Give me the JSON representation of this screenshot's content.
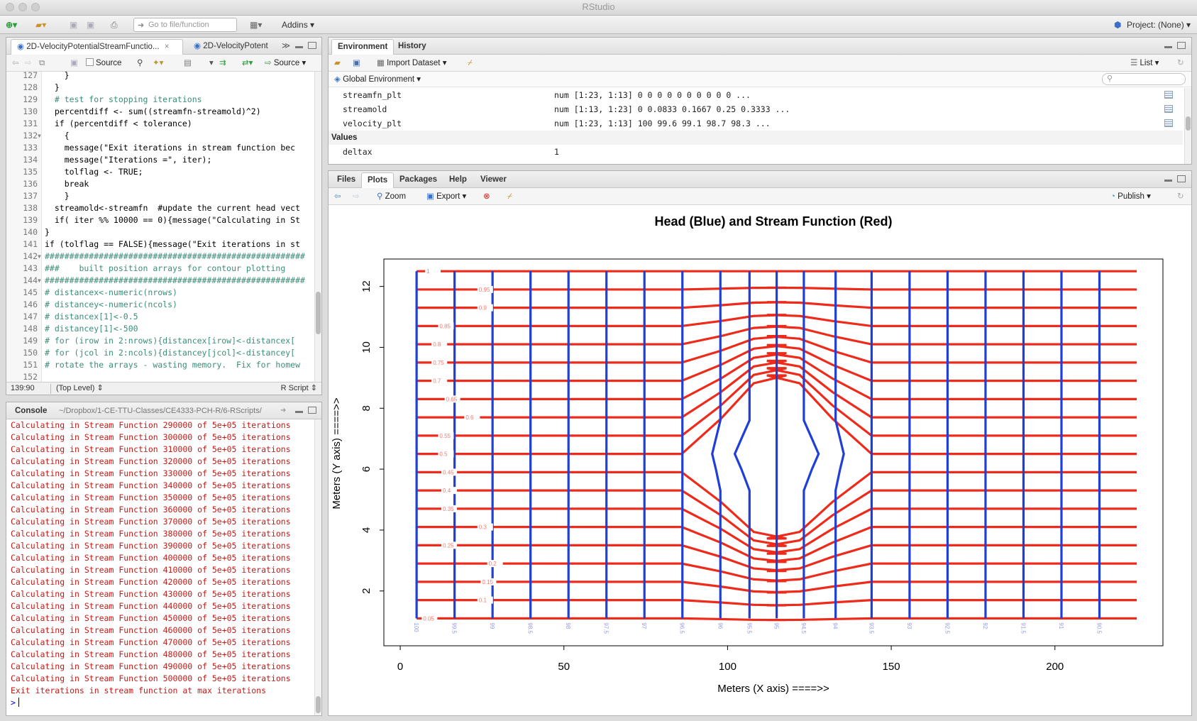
{
  "window": {
    "title": "RStudio"
  },
  "toolbar": {
    "goto_placeholder": "Go to file/function",
    "addins_label": "Addins",
    "project_label": "Project: (None)"
  },
  "editor": {
    "tabs": [
      {
        "label": "2D-VelocityPotentialStreamFunctio..."
      },
      {
        "label": "2D-VelocityPotent"
      }
    ],
    "source_checkbox_label": "Source",
    "source_button_label": "Source",
    "lines": [
      {
        "n": "127",
        "fold": "",
        "code": "    }"
      },
      {
        "n": "128",
        "fold": "",
        "code": "  }"
      },
      {
        "n": "129",
        "fold": "",
        "code": "  # test for stopping iterations"
      },
      {
        "n": "130",
        "fold": "",
        "code": "  percentdiff <- sum((streamfn-streamold)^2)"
      },
      {
        "n": "131",
        "fold": "",
        "code": "  if (percentdiff < tolerance)"
      },
      {
        "n": "132",
        "fold": "▼",
        "code": "    {"
      },
      {
        "n": "133",
        "fold": "",
        "code": "    message(\"Exit iterations in stream function bec"
      },
      {
        "n": "134",
        "fold": "",
        "code": "    message(\"Iterations =\", iter);"
      },
      {
        "n": "135",
        "fold": "",
        "code": "    tolflag <- TRUE;"
      },
      {
        "n": "136",
        "fold": "",
        "code": "    break"
      },
      {
        "n": "137",
        "fold": "",
        "code": "    }"
      },
      {
        "n": "138",
        "fold": "",
        "code": "  streamold<-streamfn  #update the current head vect"
      },
      {
        "n": "139",
        "fold": "",
        "code": "  if( iter %% 10000 == 0){message(\"Calculating in St"
      },
      {
        "n": "140",
        "fold": "",
        "code": "}"
      },
      {
        "n": "141",
        "fold": "",
        "code": "if (tolflag == FALSE){message(\"Exit iterations in st"
      },
      {
        "n": "142",
        "fold": "▼",
        "code": "#####################################################"
      },
      {
        "n": "143",
        "fold": "",
        "code": "###    built position arrays for contour plotting"
      },
      {
        "n": "144",
        "fold": "▼",
        "code": "#####################################################"
      },
      {
        "n": "145",
        "fold": "",
        "code": "# distancex<-numeric(nrows)"
      },
      {
        "n": "146",
        "fold": "",
        "code": "# distancey<-numeric(ncols)"
      },
      {
        "n": "147",
        "fold": "",
        "code": "# distancex[1]<-0.5"
      },
      {
        "n": "148",
        "fold": "",
        "code": "# distancey[1]<-500"
      },
      {
        "n": "149",
        "fold": "",
        "code": "# for (irow in 2:nrows){distancex[irow]<-distancex["
      },
      {
        "n": "150",
        "fold": "",
        "code": "# for (jcol in 2:ncols){distancey[jcol]<-distancey["
      },
      {
        "n": "151",
        "fold": "",
        "code": "# rotate the arrays - wasting memory.  Fix for homew"
      },
      {
        "n": "152",
        "fold": "",
        "code": ""
      }
    ],
    "status": {
      "position": "139:90",
      "scope": "(Top Level)",
      "filetype": "R Script"
    }
  },
  "console": {
    "title": "Console",
    "path": "~/Dropbox/1-CE-TTU-Classes/CE4333-PCH-R/6-RScripts/",
    "lines": [
      "Calculating in Stream Function 290000 of 5e+05 iterations",
      "Calculating in Stream Function 300000 of 5e+05 iterations",
      "Calculating in Stream Function 310000 of 5e+05 iterations",
      "Calculating in Stream Function 320000 of 5e+05 iterations",
      "Calculating in Stream Function 330000 of 5e+05 iterations",
      "Calculating in Stream Function 340000 of 5e+05 iterations",
      "Calculating in Stream Function 350000 of 5e+05 iterations",
      "Calculating in Stream Function 360000 of 5e+05 iterations",
      "Calculating in Stream Function 370000 of 5e+05 iterations",
      "Calculating in Stream Function 380000 of 5e+05 iterations",
      "Calculating in Stream Function 390000 of 5e+05 iterations",
      "Calculating in Stream Function 400000 of 5e+05 iterations",
      "Calculating in Stream Function 410000 of 5e+05 iterations",
      "Calculating in Stream Function 420000 of 5e+05 iterations",
      "Calculating in Stream Function 430000 of 5e+05 iterations",
      "Calculating in Stream Function 440000 of 5e+05 iterations",
      "Calculating in Stream Function 450000 of 5e+05 iterations",
      "Calculating in Stream Function 460000 of 5e+05 iterations",
      "Calculating in Stream Function 470000 of 5e+05 iterations",
      "Calculating in Stream Function 480000 of 5e+05 iterations",
      "Calculating in Stream Function 490000 of 5e+05 iterations",
      "Calculating in Stream Function 500000 of 5e+05 iterations",
      "Exit iterations in stream function at max iterations"
    ],
    "prompt": ">"
  },
  "environment": {
    "tabs": [
      "Environment",
      "History"
    ],
    "import_label": "Import Dataset",
    "list_label": "List",
    "scope_label": "Global Environment",
    "rows": [
      {
        "name": "streamfn_plt",
        "value": "num [1:23, 1:13] 0 0 0 0 0 0 0 0 0 0 ..."
      },
      {
        "name": "streamold",
        "value": "num [1:13, 1:23] 0 0.0833 0.1667 0.25 0.3333 ..."
      },
      {
        "name": "velocity_plt",
        "value": "num [1:23, 1:13] 100 99.6 99.1 98.7 98.3 ..."
      }
    ],
    "values_header": "Values",
    "value_rows": [
      {
        "name": "deltax",
        "value": "1"
      }
    ]
  },
  "plots_pane": {
    "tabs": [
      "Files",
      "Plots",
      "Packages",
      "Help",
      "Viewer"
    ],
    "zoom_label": "Zoom",
    "export_label": "Export",
    "publish_label": "Publish"
  },
  "chart_data": {
    "type": "contour",
    "title": "Head (Blue) and Stream Function (Red)",
    "xlabel": "Meters (X axis) ====>>",
    "ylabel": "Meters (Y axis) ====>>",
    "xlim": [
      -5,
      233
    ],
    "ylim": [
      0.2,
      12.9
    ],
    "x_ticks": [
      0,
      50,
      100,
      150,
      200
    ],
    "y_ticks": [
      2,
      4,
      6,
      8,
      10,
      12
    ],
    "head_series": {
      "name": "Head (Blue)",
      "color": "#1f3fd6",
      "x": [
        5,
        16.6,
        28.2,
        39.8,
        51.4,
        63,
        74.6,
        86.2,
        97.8,
        106.7,
        115,
        123.3,
        133,
        144,
        155.6,
        167.2,
        178.8,
        190.4,
        202,
        213.6
      ],
      "labels": [
        "100",
        "99.5",
        "99",
        "98.5",
        "98",
        "97.5",
        "97",
        "96.5",
        "96",
        "95.5",
        "95",
        "94.5",
        "94",
        "93.5",
        "93",
        "92.5",
        "92",
        "91.5",
        "91",
        "90.5"
      ]
    },
    "stream_series": {
      "name": "Stream Function (Red)",
      "color": "#ee2b1b",
      "x_range": [
        5,
        225
      ],
      "y": [
        1.1,
        1.7,
        2.3,
        2.9,
        3.5,
        4.1,
        4.7,
        5.3,
        5.9,
        6.5,
        7.1,
        7.7,
        8.3,
        8.9,
        9.5,
        10.1,
        10.7,
        11.3,
        11.9,
        12.5
      ],
      "labels": [
        "0.05",
        "0.1",
        "0.15",
        "0.2",
        "0.25",
        "0.3",
        "0.35",
        "0.4",
        "0.45",
        "0.5",
        "0.55",
        "0.6",
        "0.65",
        "0.7",
        "0.75",
        "0.8",
        "0.85",
        "0.9",
        "0.95",
        "1"
      ]
    },
    "obstacle_x": [
      86,
      144
    ],
    "grid": false
  },
  "colors": {
    "console_text": "#c41a16",
    "head_line": "#1f3fd6",
    "stream_line": "#ee2b1b"
  }
}
